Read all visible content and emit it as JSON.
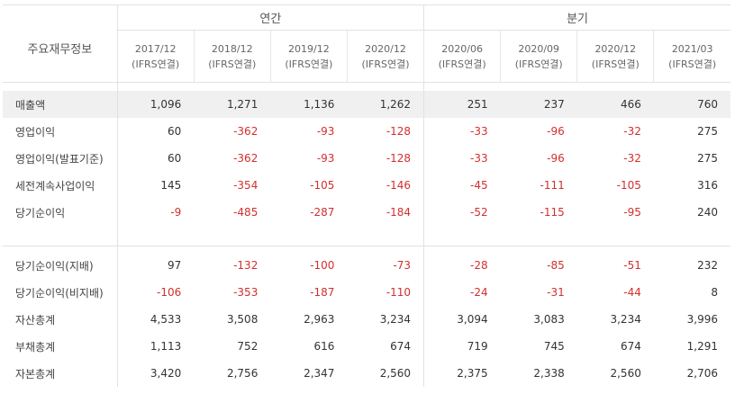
{
  "table": {
    "title": "주요재무정보",
    "groups": {
      "annual": "연간",
      "quarter": "분기"
    },
    "columns": [
      {
        "period": "2017/12",
        "basis": "(IFRS연결)"
      },
      {
        "period": "2018/12",
        "basis": "(IFRS연결)"
      },
      {
        "period": "2019/12",
        "basis": "(IFRS연결)"
      },
      {
        "period": "2020/12",
        "basis": "(IFRS연결)"
      },
      {
        "period": "2020/06",
        "basis": "(IFRS연결)"
      },
      {
        "period": "2020/09",
        "basis": "(IFRS연결)"
      },
      {
        "period": "2020/12",
        "basis": "(IFRS연결)"
      },
      {
        "period": "2021/03",
        "basis": "(IFRS연결)"
      }
    ],
    "rows_top": [
      {
        "label": "매출액",
        "values": [
          "1,096",
          "1,271",
          "1,136",
          "1,262",
          "251",
          "237",
          "466",
          "760"
        ]
      },
      {
        "label": "영업이익",
        "values": [
          "60",
          "-362",
          "-93",
          "-128",
          "-33",
          "-96",
          "-32",
          "275"
        ]
      },
      {
        "label": "영업이익(발표기준)",
        "values": [
          "60",
          "-362",
          "-93",
          "-128",
          "-33",
          "-96",
          "-32",
          "275"
        ]
      },
      {
        "label": "세전계속사업이익",
        "values": [
          "145",
          "-354",
          "-105",
          "-146",
          "-45",
          "-111",
          "-105",
          "316"
        ]
      },
      {
        "label": "당기순이익",
        "values": [
          "-9",
          "-485",
          "-287",
          "-184",
          "-52",
          "-115",
          "-95",
          "240"
        ]
      }
    ],
    "rows_bottom": [
      {
        "label": "당기순이익(지배)",
        "values": [
          "97",
          "-132",
          "-100",
          "-73",
          "-28",
          "-85",
          "-51",
          "232"
        ]
      },
      {
        "label": "당기순이익(비지배)",
        "values": [
          "-106",
          "-353",
          "-187",
          "-110",
          "-24",
          "-31",
          "-44",
          "8"
        ]
      },
      {
        "label": "자산총계",
        "values": [
          "4,533",
          "3,508",
          "2,963",
          "3,234",
          "3,094",
          "3,083",
          "3,234",
          "3,996"
        ]
      },
      {
        "label": "부채총계",
        "values": [
          "1,113",
          "752",
          "616",
          "674",
          "719",
          "745",
          "674",
          "1,291"
        ]
      },
      {
        "label": "자본총계",
        "values": [
          "3,420",
          "2,756",
          "2,347",
          "2,560",
          "2,375",
          "2,338",
          "2,560",
          "2,706"
        ]
      }
    ],
    "colors": {
      "negative": "#d32f2f",
      "highlight": "#f0f0f0",
      "border": "#e2e2e2"
    }
  }
}
